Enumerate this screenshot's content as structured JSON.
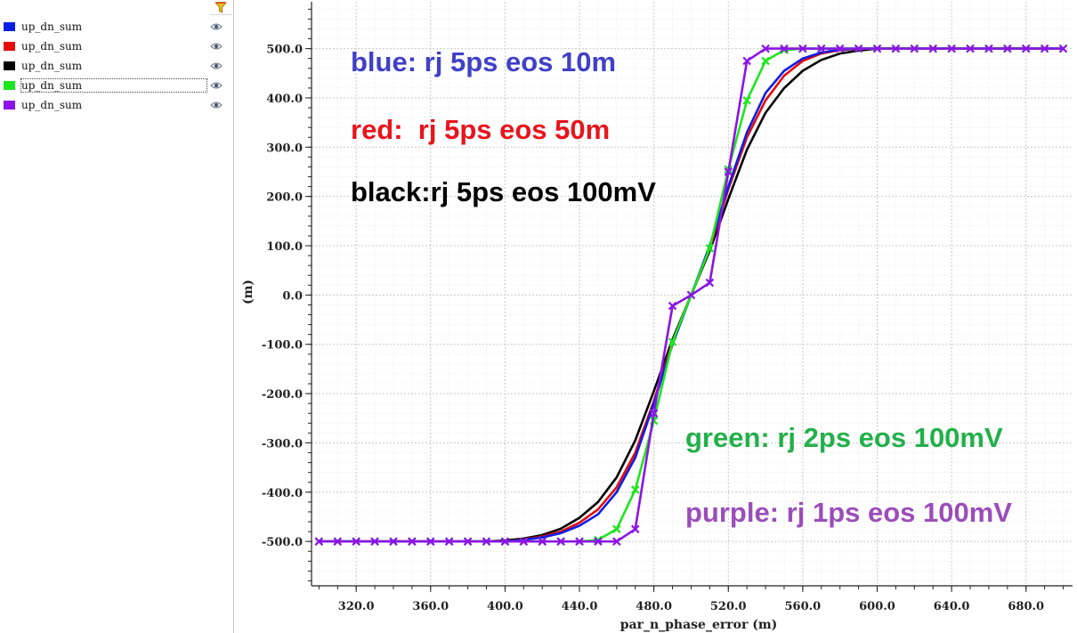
{
  "legend": {
    "items": [
      {
        "label": "up_dn_sum",
        "color": "#0a1ee6"
      },
      {
        "label": "up_dn_sum",
        "color": "#e60a0a"
      },
      {
        "label": "up_dn_sum",
        "color": "#000000"
      },
      {
        "label": "up_dn_sum",
        "color": "#1ee61e"
      },
      {
        "label": "up_dn_sum",
        "color": "#8c14e6"
      }
    ],
    "selected_index": 3
  },
  "icons": {
    "filter": "filter-icon",
    "visibility": "eye-icon"
  },
  "chart_data": {
    "type": "line",
    "xlabel": "par_n_phase_error (m)",
    "ylabel": "(m)",
    "xlim": [
      296,
      705
    ],
    "ylim": [
      -590,
      595
    ],
    "x_ticks": [
      320,
      360,
      400,
      440,
      480,
      520,
      560,
      600,
      640,
      680
    ],
    "x_tick_labels": [
      "320.0",
      "360.0",
      "400.0",
      "440.0",
      "480.0",
      "520.0",
      "560.0",
      "600.0",
      "640.0",
      "680.0"
    ],
    "y_ticks": [
      500,
      400,
      300,
      200,
      100,
      0,
      -100,
      -200,
      -300,
      -400,
      -500
    ],
    "y_tick_labels": [
      "500.0",
      "400.0",
      "300.0",
      "200.0",
      "100.0",
      "0.0",
      "-100.0",
      "-200.0",
      "-300.0",
      "-400.0",
      "-500.0"
    ],
    "grid": true,
    "annotations": [
      {
        "text": "blue: rj 5ps eos 10m",
        "color": "#4040c8"
      },
      {
        "text": "red:  rj 5ps eos 50m",
        "color": "#e8141c"
      },
      {
        "text": "black:rj 5ps eos 100mV",
        "color": "#000000"
      },
      {
        "text": "green: rj 2ps eos 100mV",
        "color": "#22b04a"
      },
      {
        "text": "purple: rj 1ps eos 100mV",
        "color": "#9b4dba"
      }
    ],
    "series": [
      {
        "color": "#0a1ee6",
        "markers": false,
        "x": [
          300,
          400,
          410,
          420,
          430,
          440,
          450,
          460,
          470,
          480,
          490,
          500,
          510,
          520,
          530,
          540,
          550,
          560,
          570,
          580,
          590,
          700
        ],
        "y": [
          -500,
          -500,
          -497,
          -492,
          -483,
          -468,
          -445,
          -400,
          -330,
          -220,
          -100,
          0,
          100,
          220,
          330,
          410,
          455,
          480,
          492,
          498,
          500,
          500
        ]
      },
      {
        "color": "#e60a0a",
        "markers": false,
        "x": [
          300,
          400,
          410,
          420,
          430,
          440,
          450,
          460,
          470,
          480,
          490,
          500,
          510,
          520,
          530,
          540,
          550,
          560,
          570,
          580,
          590,
          700
        ],
        "y": [
          -500,
          -500,
          -496,
          -490,
          -480,
          -462,
          -435,
          -390,
          -320,
          -215,
          -95,
          0,
          95,
          215,
          320,
          395,
          445,
          475,
          490,
          497,
          500,
          500
        ]
      },
      {
        "color": "#000000",
        "markers": false,
        "x": [
          300,
          390,
          400,
          410,
          420,
          430,
          440,
          450,
          460,
          470,
          480,
          490,
          500,
          510,
          520,
          530,
          540,
          550,
          560,
          570,
          580,
          590,
          600,
          700
        ],
        "y": [
          -500,
          -500,
          -498,
          -494,
          -487,
          -474,
          -452,
          -420,
          -370,
          -295,
          -195,
          -90,
          0,
          90,
          195,
          295,
          370,
          420,
          455,
          477,
          490,
          496,
          500,
          500
        ]
      },
      {
        "color": "#1ee61e",
        "markers": true,
        "x": [
          300,
          310,
          320,
          330,
          340,
          350,
          360,
          370,
          380,
          390,
          400,
          410,
          420,
          430,
          440,
          450,
          460,
          470,
          480,
          490,
          500,
          510,
          520,
          530,
          540,
          550,
          560,
          570,
          580,
          590,
          600,
          610,
          620,
          630,
          640,
          650,
          660,
          670,
          680,
          690,
          700
        ],
        "y": [
          -500,
          -500,
          -500,
          -500,
          -500,
          -500,
          -500,
          -500,
          -500,
          -500,
          -500,
          -500,
          -500,
          -500,
          -500,
          -497,
          -475,
          -395,
          -255,
          -95,
          0,
          95,
          255,
          395,
          475,
          497,
          500,
          500,
          500,
          500,
          500,
          500,
          500,
          500,
          500,
          500,
          500,
          500,
          500,
          500,
          500
        ]
      },
      {
        "color": "#8c14e6",
        "markers": true,
        "x": [
          300,
          310,
          320,
          330,
          340,
          350,
          360,
          370,
          380,
          390,
          400,
          410,
          420,
          430,
          440,
          450,
          460,
          470,
          480,
          490,
          500,
          510,
          520,
          530,
          540,
          550,
          560,
          570,
          580,
          590,
          600,
          610,
          620,
          630,
          640,
          650,
          660,
          670,
          680,
          690,
          700
        ],
        "y": [
          -500,
          -500,
          -500,
          -500,
          -500,
          -500,
          -500,
          -500,
          -500,
          -500,
          -500,
          -500,
          -500,
          -500,
          -500,
          -500,
          -500,
          -475,
          -240,
          -22,
          0,
          25,
          250,
          475,
          500,
          500,
          500,
          500,
          500,
          500,
          500,
          500,
          500,
          500,
          500,
          500,
          500,
          500,
          500,
          500,
          500
        ]
      }
    ]
  }
}
